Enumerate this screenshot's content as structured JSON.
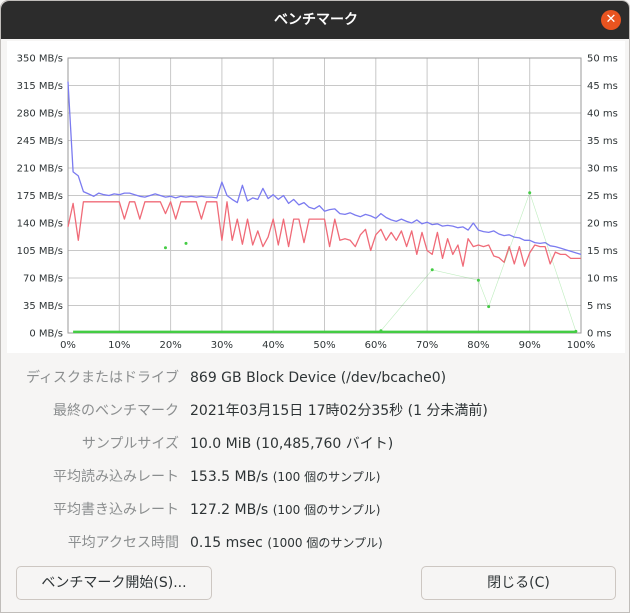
{
  "window": {
    "title": "ベンチマーク",
    "close_symbol": "✕"
  },
  "chart_data": {
    "type": "line",
    "y_left": {
      "unit": "MB/s",
      "range": [
        0,
        350
      ],
      "ticks": [
        "0 MB/s",
        "35 MB/s",
        "70 MB/s",
        "105 MB/s",
        "140 MB/s",
        "175 MB/s",
        "210 MB/s",
        "245 MB/s",
        "280 MB/s",
        "315 MB/s",
        "350 MB/s"
      ]
    },
    "y_right": {
      "unit": "ms",
      "range": [
        0,
        50
      ],
      "ticks": [
        "0 ms",
        "5 ms",
        "10 ms",
        "15 ms",
        "20 ms",
        "25 ms",
        "30 ms",
        "35 ms",
        "40 ms",
        "45 ms",
        "50 ms"
      ]
    },
    "x": {
      "range": [
        0,
        100
      ],
      "ticks": [
        "0%",
        "10%",
        "20%",
        "30%",
        "40%",
        "50%",
        "60%",
        "70%",
        "80%",
        "90%",
        "100%"
      ]
    },
    "grid": true,
    "series": [
      {
        "role": "read",
        "color": "#7b7bf0",
        "axis": "left",
        "points": [
          [
            0,
            320
          ],
          [
            1,
            205
          ],
          [
            2,
            200
          ],
          [
            3,
            180
          ],
          [
            4,
            177
          ],
          [
            5,
            174
          ],
          [
            6,
            178
          ],
          [
            7,
            176
          ],
          [
            8,
            175
          ],
          [
            9,
            177
          ],
          [
            10,
            176
          ],
          [
            11,
            178
          ],
          [
            12,
            178
          ],
          [
            13,
            176
          ],
          [
            14,
            174
          ],
          [
            15,
            173
          ],
          [
            16,
            175
          ],
          [
            17,
            177
          ],
          [
            18,
            175
          ],
          [
            19,
            173
          ],
          [
            20,
            174
          ],
          [
            21,
            172
          ],
          [
            22,
            174
          ],
          [
            23,
            173
          ],
          [
            24,
            174
          ],
          [
            25,
            173
          ],
          [
            26,
            174
          ],
          [
            27,
            173
          ],
          [
            28,
            173
          ],
          [
            29,
            172
          ],
          [
            30,
            192
          ],
          [
            31,
            175
          ],
          [
            32,
            170
          ],
          [
            33,
            166
          ],
          [
            34,
            188
          ],
          [
            35,
            168
          ],
          [
            36,
            172
          ],
          [
            37,
            170
          ],
          [
            38,
            184
          ],
          [
            39,
            171
          ],
          [
            40,
            176
          ],
          [
            41,
            170
          ],
          [
            42,
            175
          ],
          [
            43,
            165
          ],
          [
            44,
            170
          ],
          [
            45,
            163
          ],
          [
            46,
            166
          ],
          [
            47,
            160
          ],
          [
            48,
            158
          ],
          [
            49,
            162
          ],
          [
            50,
            155
          ],
          [
            51,
            157
          ],
          [
            52,
            158
          ],
          [
            53,
            152
          ],
          [
            54,
            151
          ],
          [
            55,
            153
          ],
          [
            56,
            150
          ],
          [
            57,
            148
          ],
          [
            58,
            151
          ],
          [
            59,
            149
          ],
          [
            60,
            146
          ],
          [
            61,
            152
          ],
          [
            62,
            147
          ],
          [
            63,
            144
          ],
          [
            64,
            142
          ],
          [
            65,
            145
          ],
          [
            66,
            142
          ],
          [
            67,
            140
          ],
          [
            68,
            144
          ],
          [
            69,
            139
          ],
          [
            70,
            141
          ],
          [
            71,
            138
          ],
          [
            72,
            139
          ],
          [
            73,
            136
          ],
          [
            74,
            137
          ],
          [
            75,
            136
          ],
          [
            76,
            134
          ],
          [
            77,
            135
          ],
          [
            78,
            131
          ],
          [
            79,
            140
          ],
          [
            80,
            131
          ],
          [
            81,
            129
          ],
          [
            82,
            128
          ],
          [
            83,
            130
          ],
          [
            84,
            126
          ],
          [
            85,
            124
          ],
          [
            86,
            125
          ],
          [
            87,
            122
          ],
          [
            88,
            121
          ],
          [
            89,
            118
          ],
          [
            90,
            118
          ],
          [
            91,
            115
          ],
          [
            92,
            114
          ],
          [
            93,
            115
          ],
          [
            94,
            111
          ],
          [
            95,
            110
          ],
          [
            96,
            108
          ],
          [
            97,
            106
          ],
          [
            98,
            104
          ],
          [
            99,
            102
          ],
          [
            100,
            100
          ]
        ]
      },
      {
        "role": "write",
        "color": "#f06b78",
        "axis": "left",
        "points": [
          [
            0,
            135
          ],
          [
            1,
            165
          ],
          [
            2,
            118
          ],
          [
            3,
            167
          ],
          [
            4,
            167
          ],
          [
            5,
            167
          ],
          [
            6,
            167
          ],
          [
            7,
            167
          ],
          [
            8,
            167
          ],
          [
            9,
            167
          ],
          [
            10,
            167
          ],
          [
            11,
            145
          ],
          [
            12,
            167
          ],
          [
            13,
            167
          ],
          [
            14,
            145
          ],
          [
            15,
            167
          ],
          [
            16,
            167
          ],
          [
            17,
            167
          ],
          [
            18,
            167
          ],
          [
            19,
            152
          ],
          [
            20,
            167
          ],
          [
            21,
            145
          ],
          [
            22,
            167
          ],
          [
            23,
            167
          ],
          [
            24,
            167
          ],
          [
            25,
            167
          ],
          [
            26,
            145
          ],
          [
            27,
            167
          ],
          [
            28,
            167
          ],
          [
            29,
            167
          ],
          [
            30,
            118
          ],
          [
            31,
            167
          ],
          [
            32,
            118
          ],
          [
            33,
            145
          ],
          [
            34,
            113
          ],
          [
            35,
            145
          ],
          [
            36,
            112
          ],
          [
            37,
            130
          ],
          [
            38,
            110
          ],
          [
            39,
            122
          ],
          [
            40,
            145
          ],
          [
            41,
            112
          ],
          [
            42,
            145
          ],
          [
            43,
            110
          ],
          [
            44,
            145
          ],
          [
            45,
            145
          ],
          [
            46,
            115
          ],
          [
            47,
            145
          ],
          [
            48,
            145
          ],
          [
            49,
            145
          ],
          [
            50,
            145
          ],
          [
            51,
            110
          ],
          [
            52,
            145
          ],
          [
            53,
            118
          ],
          [
            54,
            120
          ],
          [
            55,
            118
          ],
          [
            56,
            110
          ],
          [
            57,
            125
          ],
          [
            58,
            132
          ],
          [
            59,
            105
          ],
          [
            60,
            125
          ],
          [
            61,
            132
          ],
          [
            62,
            118
          ],
          [
            63,
            128
          ],
          [
            64,
            118
          ],
          [
            65,
            130
          ],
          [
            66,
            110
          ],
          [
            67,
            130
          ],
          [
            68,
            100
          ],
          [
            69,
            128
          ],
          [
            70,
            105
          ],
          [
            71,
            100
          ],
          [
            72,
            128
          ],
          [
            73,
            95
          ],
          [
            74,
            120
          ],
          [
            75,
            100
          ],
          [
            76,
            112
          ],
          [
            77,
            85
          ],
          [
            78,
            120
          ],
          [
            79,
            110
          ],
          [
            80,
            112
          ],
          [
            81,
            110
          ],
          [
            82,
            112
          ],
          [
            83,
            98
          ],
          [
            84,
            96
          ],
          [
            85,
            90
          ],
          [
            86,
            110
          ],
          [
            87,
            88
          ],
          [
            88,
            110
          ],
          [
            89,
            85
          ],
          [
            90,
            102
          ],
          [
            91,
            112
          ],
          [
            92,
            110
          ],
          [
            93,
            110
          ],
          [
            94,
            88
          ],
          [
            95,
            103
          ],
          [
            96,
            100
          ],
          [
            97,
            100
          ],
          [
            98,
            95
          ],
          [
            99,
            95
          ],
          [
            100,
            95
          ]
        ]
      },
      {
        "role": "access-time",
        "color": "#44cc44",
        "axis": "right",
        "points": [
          [
            1,
            0.2
          ],
          [
            99,
            0.2
          ]
        ],
        "scatter": [
          [
            19,
            15.5
          ],
          [
            23,
            16.3
          ],
          [
            61,
            0.4
          ],
          [
            71,
            11.5
          ],
          [
            80,
            9.6
          ],
          [
            82,
            4.8
          ],
          [
            90,
            25.5
          ],
          [
            99,
            0.3
          ]
        ]
      }
    ]
  },
  "info": {
    "drive_label": "ディスクまたはドライブ",
    "drive_value": "869 GB Block Device (/dev/bcache0)",
    "last_label": "最終のベンチマーク",
    "last_value": "2021年03月15日 17時02分35秒 (1 分未満前)",
    "sample_label": "サンプルサイズ",
    "sample_value": "10.0 MiB (10,485,760 バイト)",
    "read_label": "平均読み込みレート",
    "read_value": "153.5 MB/s",
    "read_note": "(100 個のサンプル)",
    "write_label": "平均書き込みレート",
    "write_value": "127.2 MB/s",
    "write_note": "(100 個のサンプル)",
    "access_label": "平均アクセス時間",
    "access_value": "0.15 msec",
    "access_note": "(1000 個のサンプル)"
  },
  "buttons": {
    "start": "ベンチマーク開始(S)...",
    "close": "閉じる(C)"
  }
}
